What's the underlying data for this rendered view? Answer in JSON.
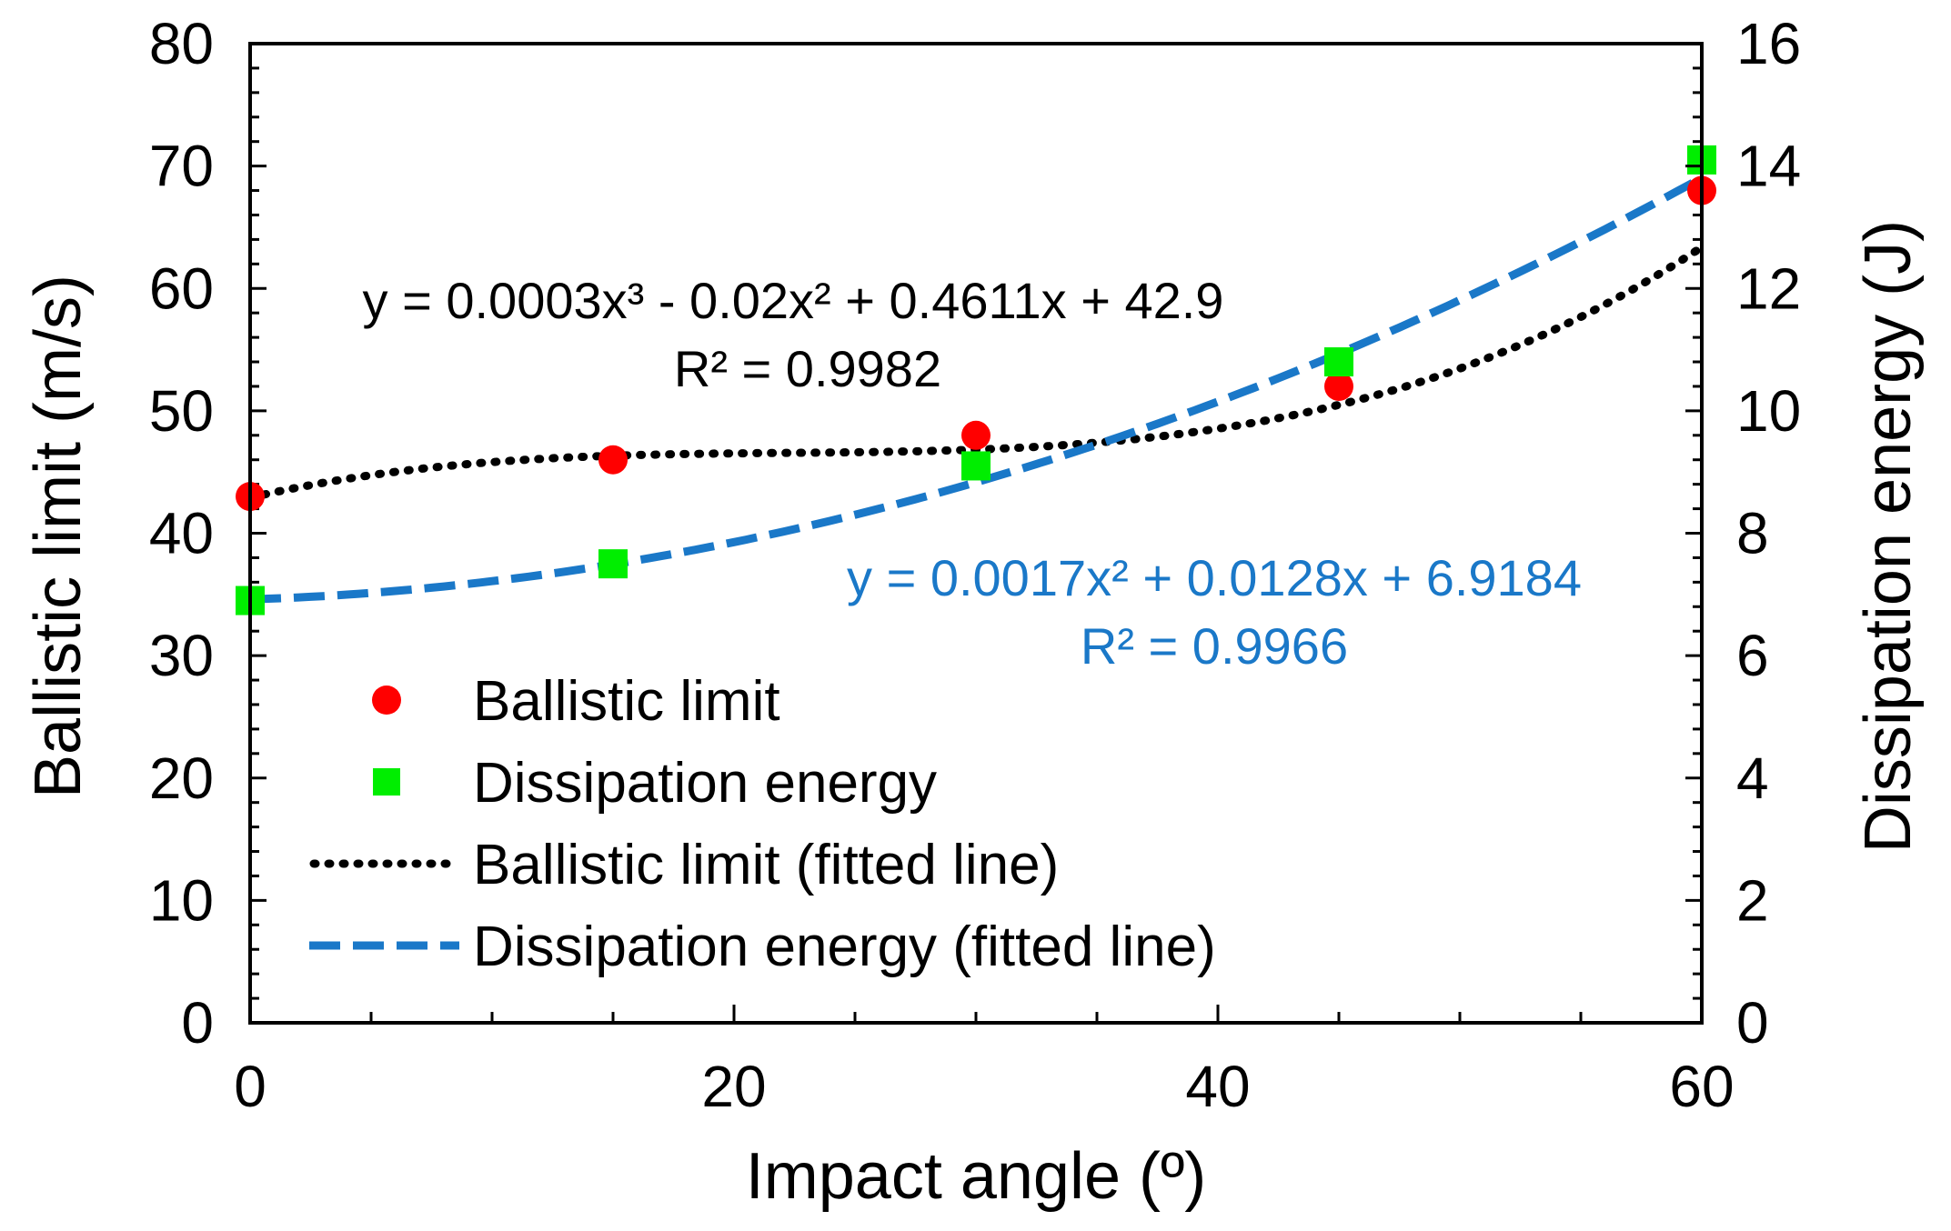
{
  "chart_data": {
    "type": "scatter",
    "xlabel": "Impact angle (º)",
    "ylabel_left": "Ballistic limit (m/s)",
    "ylabel_right": "Dissipation energy (J)",
    "xlim": [
      0,
      60
    ],
    "ylim_left": [
      0,
      80
    ],
    "ylim_right": [
      0,
      16
    ],
    "x_ticks": [
      0,
      20,
      40,
      60
    ],
    "y_ticks_left": [
      0,
      10,
      20,
      30,
      40,
      50,
      60,
      70,
      80
    ],
    "y_ticks_right": [
      0,
      2,
      4,
      6,
      8,
      10,
      12,
      14,
      16
    ],
    "series": [
      {
        "name": "Ballistic limit",
        "axis": "left",
        "marker": "circle",
        "color": "#ff0000",
        "x": [
          0,
          15,
          30,
          45,
          60
        ],
        "y": [
          43,
          46,
          48,
          52,
          68
        ]
      },
      {
        "name": "Dissipation energy",
        "axis": "right",
        "marker": "square",
        "color": "#00ee00",
        "x": [
          0,
          15,
          30,
          45,
          60
        ],
        "y": [
          6.9,
          7.5,
          9.1,
          10.8,
          14.1
        ]
      }
    ],
    "fits": [
      {
        "name": "Ballistic limit (fitted line)",
        "axis": "left",
        "style": "dotted",
        "color": "#000000",
        "coefficients": {
          "a3": 0.0003,
          "a2": -0.02,
          "a1": 0.4611,
          "a0": 42.9
        },
        "equation": "y = 0.0003x³ - 0.02x² + 0.4611x + 42.9",
        "r2": "R² = 0.9982"
      },
      {
        "name": "Dissipation energy (fitted line)",
        "axis": "right",
        "style": "dashed",
        "color": "#1a78c8",
        "coefficients": {
          "a2": 0.0017,
          "a1": 0.0128,
          "a0": 6.9184
        },
        "equation": "y = 0.0017x² + 0.0128x + 6.9184",
        "r2": "R² = 0.9966"
      }
    ],
    "legend": {
      "placement": "bottom-left",
      "entries": [
        "Ballistic limit",
        "Dissipation energy",
        "Ballistic limit (fitted line)",
        "Dissipation energy (fitted line)"
      ]
    }
  }
}
